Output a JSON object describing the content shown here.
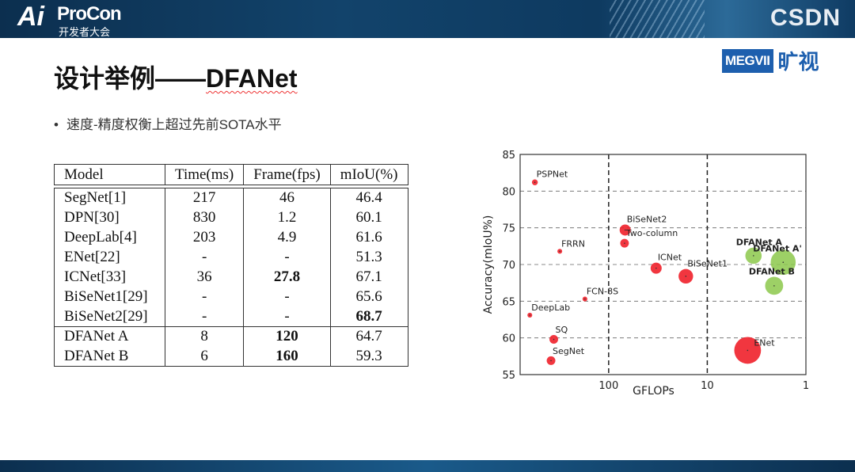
{
  "banner": {
    "logo_ai": "Ai",
    "logo_name": "ProCon",
    "logo_sub": "开发者大会",
    "partner": "CSDN"
  },
  "brand": {
    "box": "MEGVII",
    "cn": "旷视",
    "color": "#1d5fae"
  },
  "title": {
    "prefix": "设计举例——",
    "name": "DFANet"
  },
  "bullet": "速度-精度权衡上超过先前SOTA水平",
  "table": {
    "headers": [
      "Model",
      "Time(ms)",
      "Frame(fps)",
      "mIoU(%)"
    ],
    "rows": [
      {
        "cells": [
          "SegNet[1]",
          "217",
          "46",
          "46.4"
        ],
        "bold": []
      },
      {
        "cells": [
          "DPN[30]",
          "830",
          "1.2",
          "60.1"
        ],
        "bold": []
      },
      {
        "cells": [
          "DeepLab[4]",
          "203",
          "4.9",
          "61.6"
        ],
        "bold": []
      },
      {
        "cells": [
          "ENet[22]",
          "-",
          "-",
          "51.3"
        ],
        "bold": []
      },
      {
        "cells": [
          "ICNet[33]",
          "36",
          "27.8",
          "67.1"
        ],
        "bold": [
          2
        ]
      },
      {
        "cells": [
          "BiSeNet1[29]",
          "-",
          "-",
          "65.6"
        ],
        "bold": []
      },
      {
        "cells": [
          "BiSeNet2[29]",
          "-",
          "-",
          "68.7"
        ],
        "bold": [
          3
        ]
      },
      {
        "cells": [
          "DFANet A",
          "8",
          "120",
          "64.7"
        ],
        "bold": [
          2
        ]
      },
      {
        "cells": [
          "DFANet B",
          "6",
          "160",
          "59.3"
        ],
        "bold": [
          2
        ]
      }
    ]
  },
  "chart_data": {
    "type": "scatter",
    "xlabel": "GFLOPs",
    "ylabel": "Accuracy(mIoU%)",
    "xscale": "log",
    "xreversed": true,
    "xlim": [
      790,
      1
    ],
    "ylim": [
      55,
      85
    ],
    "xticks": [
      100,
      10,
      1
    ],
    "yticks": [
      55,
      60,
      65,
      70,
      75,
      80,
      85
    ],
    "grid": "dashed",
    "colors": {
      "others": "#f0202a",
      "ours": "#8cc84b"
    },
    "points": [
      {
        "label": "PSPNet",
        "x": 560,
        "y": 81.2,
        "size": 1,
        "group": "others"
      },
      {
        "label": "FRRN",
        "x": 313,
        "y": 71.8,
        "size": 0.7,
        "group": "others"
      },
      {
        "label": "FCN-8S",
        "x": 174,
        "y": 65.3,
        "size": 0.7,
        "group": "others"
      },
      {
        "label": "DeepLab",
        "x": 630,
        "y": 63.1,
        "size": 0.7,
        "group": "others"
      },
      {
        "label": "SQ",
        "x": 360,
        "y": 59.8,
        "size": 1.8,
        "group": "others"
      },
      {
        "label": "SegNet",
        "x": 384,
        "y": 56.9,
        "size": 1.8,
        "group": "others"
      },
      {
        "label": "BiSeNet2",
        "x": 68,
        "y": 74.7,
        "size": 2.5,
        "group": "others"
      },
      {
        "label": "Two-column",
        "x": 69,
        "y": 72.9,
        "size": 1.8,
        "group": "others"
      },
      {
        "label": "ICNet",
        "x": 33,
        "y": 69.5,
        "size": 2.5,
        "group": "others"
      },
      {
        "label": "BiSeNet1",
        "x": 16.5,
        "y": 68.4,
        "size": 3.5,
        "group": "others"
      },
      {
        "label": "ENet",
        "x": 3.9,
        "y": 58.3,
        "size": 7,
        "group": "others"
      },
      {
        "label": "DFANet A",
        "x": 3.4,
        "y": 71.2,
        "size": 4,
        "group": "ours",
        "bold": true
      },
      {
        "label": "DFANet A'",
        "x": 1.7,
        "y": 70.3,
        "size": 6.5,
        "group": "ours",
        "bold": true
      },
      {
        "label": "DFANet B",
        "x": 2.1,
        "y": 67.1,
        "size": 4.5,
        "group": "ours",
        "bold": true
      }
    ]
  }
}
